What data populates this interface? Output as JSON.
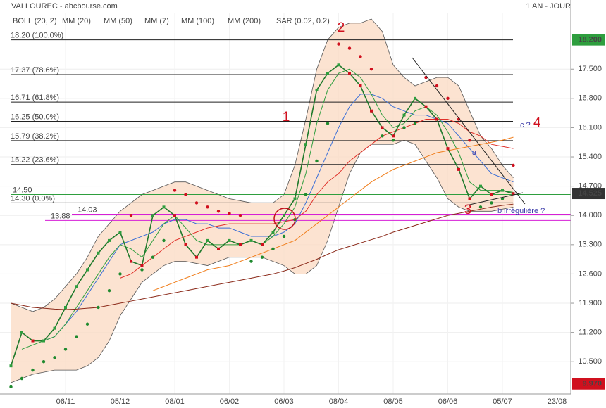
{
  "chart_data": {
    "type": "stock",
    "title": "VALLOUREC - abcbourse.com",
    "period": "1 AN - JOUR",
    "categories": [
      null,
      null,
      null,
      null,
      null,
      "06/11",
      null,
      null,
      null,
      null,
      "05/12",
      null,
      null,
      null,
      null,
      "08/01",
      null,
      null,
      null,
      null,
      "06/02",
      null,
      null,
      null,
      null,
      "06/03",
      null,
      null,
      null,
      null,
      "08/04",
      null,
      null,
      null,
      null,
      "08/05",
      null,
      null,
      null,
      null,
      "06/06",
      null,
      null,
      null,
      null,
      "05/07",
      null,
      null,
      null,
      null,
      "23/08"
    ],
    "values": [
      10.4,
      11.2,
      11.0,
      11.0,
      11.3,
      11.8,
      12.3,
      12.7,
      13.1,
      13.4,
      13.6,
      12.9,
      12.8,
      14.0,
      14.2,
      14.0,
      13.3,
      13.0,
      13.4,
      13.2,
      13.4,
      13.3,
      13.4,
      13.3,
      13.6,
      14.0,
      14.4,
      15.7,
      17.0,
      17.4,
      17.6,
      17.4,
      17.1,
      16.5,
      16.1,
      15.9,
      16.4,
      16.8,
      16.6,
      16.3,
      15.6,
      15.1,
      14.4,
      14.7,
      14.5,
      14.6,
      14.52,
      null,
      null,
      null,
      null
    ],
    "color": "#1f7a2c",
    "band": {
      "name": "BOLL (20, 2)",
      "color": "#555555",
      "fill": "#fbd9c2",
      "upper": [
        11.9,
        11.8,
        11.7,
        11.8,
        12.0,
        12.3,
        12.6,
        13.0,
        13.5,
        13.8,
        14.1,
        14.3,
        14.5,
        14.6,
        14.7,
        14.8,
        14.8,
        14.7,
        14.6,
        14.5,
        14.4,
        14.35,
        14.3,
        14.3,
        14.3,
        14.5,
        15.2,
        16.3,
        17.5,
        18.2,
        18.5,
        18.6,
        18.6,
        18.7,
        18.4,
        17.6,
        17.3,
        17.1,
        17.2,
        17.3,
        17.3,
        17.1,
        16.5,
        15.9,
        15.6,
        15.2,
        14.9,
        null,
        null,
        null,
        null
      ],
      "lower": [
        10.0,
        10.1,
        10.2,
        10.25,
        10.3,
        10.3,
        10.3,
        10.4,
        10.6,
        11.0,
        11.6,
        12.0,
        12.4,
        12.6,
        12.8,
        12.9,
        12.9,
        12.85,
        12.8,
        12.9,
        13.0,
        13.0,
        13.0,
        13.0,
        12.9,
        12.8,
        12.6,
        12.6,
        12.8,
        13.4,
        14.2,
        15.0,
        15.5,
        15.7,
        15.7,
        15.7,
        15.8,
        15.7,
        15.3,
        14.9,
        14.4,
        14.2,
        14.1,
        14.1,
        14.1,
        14.15,
        14.2,
        null,
        null,
        null,
        null
      ]
    },
    "series": [
      {
        "name": "MM (20)",
        "color": "#3b6fd6",
        "values": [
          null,
          null,
          null,
          11.0,
          11.1,
          11.4,
          11.7,
          12.1,
          12.5,
          12.9,
          13.3,
          13.4,
          13.5,
          13.6,
          13.8,
          13.9,
          13.9,
          13.8,
          13.8,
          13.7,
          13.7,
          13.6,
          13.5,
          13.5,
          13.5,
          13.6,
          13.8,
          14.3,
          14.9,
          15.5,
          16.1,
          16.6,
          16.9,
          16.9,
          16.8,
          16.6,
          16.5,
          16.4,
          16.4,
          16.3,
          16.2,
          15.9,
          15.6,
          15.3,
          15.0,
          14.9,
          14.8,
          null,
          null,
          null,
          null
        ]
      },
      {
        "name": "MM (50)",
        "color": "#e0302a",
        "values": [
          null,
          null,
          null,
          null,
          null,
          null,
          null,
          null,
          null,
          null,
          12.5,
          12.6,
          12.8,
          13.0,
          13.2,
          13.4,
          13.5,
          13.6,
          13.7,
          13.75,
          13.8,
          13.8,
          13.8,
          13.8,
          13.8,
          13.85,
          13.9,
          14.1,
          14.5,
          14.8,
          15.0,
          15.3,
          15.5,
          15.7,
          15.9,
          16.0,
          16.1,
          16.2,
          16.3,
          16.3,
          16.3,
          16.2,
          16.0,
          15.9,
          15.7,
          15.65,
          15.6,
          null,
          null,
          null,
          null
        ]
      },
      {
        "name": "MM (7)",
        "color": "#2e9e3e",
        "values": [
          null,
          10.8,
          10.9,
          11.0,
          11.1,
          11.4,
          11.8,
          12.2,
          12.6,
          13.0,
          13.3,
          13.2,
          13.0,
          13.4,
          13.8,
          14.0,
          13.7,
          13.4,
          13.3,
          13.3,
          13.3,
          13.3,
          13.4,
          13.3,
          13.5,
          13.8,
          14.2,
          15.0,
          16.2,
          17.0,
          17.4,
          17.5,
          17.3,
          16.9,
          16.4,
          16.1,
          16.2,
          16.5,
          16.6,
          16.4,
          16.0,
          15.5,
          14.8,
          14.6,
          14.6,
          14.6,
          14.55,
          null,
          null,
          null,
          null
        ]
      },
      {
        "name": "MM (100)",
        "color": "#f07d1a",
        "values": [
          null,
          null,
          null,
          null,
          null,
          null,
          null,
          null,
          null,
          null,
          null,
          null,
          null,
          12.2,
          12.3,
          12.4,
          12.5,
          12.6,
          12.7,
          12.75,
          12.8,
          12.9,
          13.0,
          13.1,
          13.2,
          13.3,
          13.4,
          13.6,
          13.8,
          14.0,
          14.2,
          14.4,
          14.6,
          14.8,
          14.95,
          15.1,
          15.2,
          15.3,
          15.4,
          15.5,
          15.55,
          15.6,
          15.65,
          15.7,
          15.75,
          15.8,
          15.87,
          null,
          null,
          null,
          null
        ]
      },
      {
        "name": "MM (200)",
        "color": "#8b2a1a",
        "values": [
          11.9,
          11.85,
          11.8,
          11.78,
          11.76,
          11.75,
          11.76,
          11.78,
          11.8,
          11.85,
          11.9,
          11.95,
          12.0,
          12.05,
          12.1,
          12.15,
          12.2,
          12.25,
          12.3,
          12.35,
          12.4,
          12.45,
          12.5,
          12.55,
          12.6,
          12.67,
          12.75,
          12.85,
          12.95,
          13.07,
          13.18,
          13.26,
          13.34,
          13.42,
          13.5,
          13.6,
          13.68,
          13.76,
          13.84,
          13.92,
          14.0,
          14.05,
          14.1,
          14.15,
          14.2,
          14.24,
          14.27,
          null,
          null,
          null,
          null
        ]
      },
      {
        "name": "SAR (0.02, 0.2)",
        "type": "dots",
        "color": "#d0101e",
        "up_color": "#1f8a2e",
        "values": [
          9.9,
          10.1,
          10.3,
          10.5,
          10.6,
          10.8,
          11.1,
          11.4,
          11.8,
          12.2,
          12.6,
          14.0,
          12.7,
          13.0,
          13.4,
          14.6,
          14.5,
          14.3,
          14.2,
          14.1,
          14.05,
          14.0,
          12.9,
          13.0,
          13.2,
          13.5,
          13.9,
          14.5,
          15.3,
          16.2,
          18.1,
          18.0,
          17.8,
          17.5,
          15.9,
          15.8,
          16.1,
          16.2,
          17.3,
          17.1,
          16.8,
          16.3,
          15.8,
          14.2,
          14.3,
          14.4,
          15.2,
          null,
          null,
          null,
          null
        ]
      }
    ],
    "ylim": [
      9.73,
      18.85
    ],
    "yticks": [
      {
        "value": 10.5,
        "label": "10.500"
      },
      {
        "value": 11.2,
        "label": "11.200"
      },
      {
        "value": 11.9,
        "label": "11.900"
      },
      {
        "value": 12.6,
        "label": "12.600"
      },
      {
        "value": 13.3,
        "label": "13.300"
      },
      {
        "value": 14.0,
        "label": "14.000"
      },
      {
        "value": 14.7,
        "label": "14.700"
      },
      {
        "value": 15.4,
        "label": "15.400"
      },
      {
        "value": 16.1,
        "label": "16.100"
      },
      {
        "value": 16.8,
        "label": "16.800"
      },
      {
        "value": 17.5,
        "label": "17.500"
      }
    ],
    "grid": true,
    "fibonacci": [
      {
        "value": 18.2,
        "label": "18.20 (100.0%)"
      },
      {
        "value": 17.37,
        "label": "17.37 (78.6%)"
      },
      {
        "value": 16.71,
        "label": "16.71 (61.8%)"
      },
      {
        "value": 16.25,
        "label": "16.25 (50.0%)"
      },
      {
        "value": 15.79,
        "label": "15.79 (38.2%)"
      },
      {
        "value": 15.22,
        "label": "15.22 (23.6%)"
      },
      {
        "value": 14.3,
        "label": "14.30 (0.0%)"
      }
    ],
    "hlines": [
      {
        "value": 14.5,
        "label": "14.50",
        "color": "#2e9e3e"
      },
      {
        "value": 14.03,
        "label": "14.03",
        "color": "#d61fd6"
      },
      {
        "value": 13.88,
        "label": "13.88",
        "color": "#d61fd6"
      }
    ],
    "price_tags": [
      {
        "value": 18.2,
        "label": "18.200",
        "color": "#2e9e3e"
      },
      {
        "value": 14.525,
        "label": "14.525",
        "color": "#333333"
      },
      {
        "value": 9.97,
        "label": "9.970",
        "color": "#d0101e"
      }
    ],
    "annotations": [
      "1",
      "2",
      "3",
      "c ?",
      "4",
      "a",
      "b irrégulière ?"
    ]
  }
}
